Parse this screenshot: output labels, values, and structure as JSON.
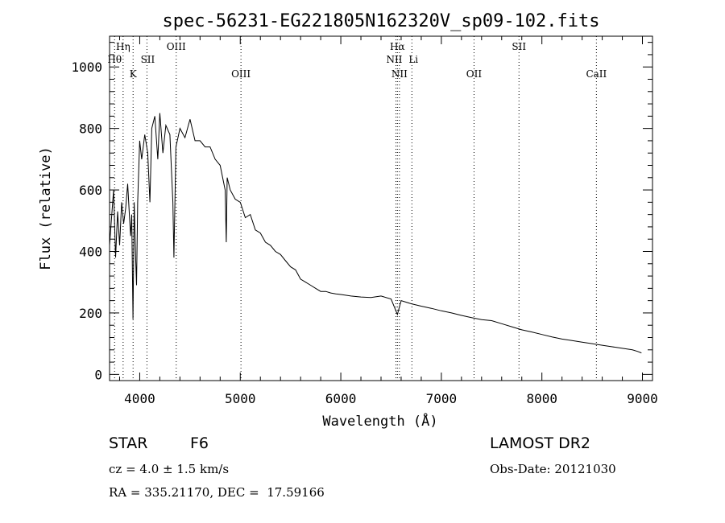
{
  "chart_data": {
    "type": "line",
    "title": "spec-56231-EG221805N162320V_sp09-102.fits",
    "xlabel": "Wavelength (Å)",
    "ylabel": "Flux (relative)",
    "xlim": [
      3700,
      9100
    ],
    "ylim": [
      -20,
      1100
    ],
    "xticks": [
      4000,
      5000,
      6000,
      7000,
      8000,
      9000
    ],
    "xtick_labels": [
      "4000",
      "5000",
      "6000",
      "7000",
      "8000",
      "9000"
    ],
    "yticks": [
      0,
      200,
      400,
      600,
      800,
      1000
    ],
    "ytick_labels": [
      "0",
      "200",
      "400",
      "600",
      "800",
      "1000"
    ],
    "grid": false,
    "series": [
      {
        "x": [
          3700,
          3720,
          3740,
          3760,
          3780,
          3800,
          3820,
          3840,
          3860,
          3880,
          3900,
          3910,
          3920,
          3933,
          3945,
          3960,
          3968,
          3980,
          4000,
          4020,
          4050,
          4080,
          4101,
          4120,
          4150,
          4180,
          4200,
          4230,
          4260,
          4300,
          4330,
          4340,
          4360,
          4400,
          4450,
          4500,
          4550,
          4600,
          4650,
          4700,
          4750,
          4800,
          4850,
          4861,
          4870,
          4900,
          4950,
          5000,
          5050,
          5100,
          5150,
          5200,
          5250,
          5300,
          5350,
          5400,
          5450,
          5500,
          5550,
          5600,
          5650,
          5700,
          5750,
          5800,
          5850,
          5900,
          5950,
          6000,
          6100,
          6200,
          6300,
          6400,
          6500,
          6563,
          6600,
          6700,
          6800,
          6900,
          7000,
          7100,
          7200,
          7300,
          7400,
          7500,
          7600,
          7700,
          7800,
          7900,
          8000,
          8100,
          8200,
          8300,
          8400,
          8500,
          8600,
          8700,
          8800,
          8900,
          8950,
          8990
        ],
        "values": [
          420,
          510,
          600,
          380,
          530,
          420,
          560,
          490,
          540,
          620,
          500,
          450,
          520,
          180,
          560,
          370,
          290,
          560,
          760,
          700,
          780,
          720,
          560,
          800,
          840,
          700,
          850,
          720,
          810,
          780,
          560,
          380,
          740,
          800,
          770,
          830,
          760,
          760,
          740,
          740,
          700,
          680,
          600,
          430,
          640,
          600,
          570,
          560,
          510,
          520,
          470,
          460,
          430,
          420,
          400,
          390,
          370,
          350,
          340,
          310,
          300,
          290,
          280,
          270,
          270,
          265,
          262,
          260,
          255,
          252,
          250,
          255,
          245,
          195,
          240,
          230,
          222,
          215,
          207,
          200,
          192,
          185,
          178,
          175,
          165,
          155,
          145,
          138,
          130,
          122,
          115,
          110,
          105,
          100,
          95,
          90,
          85,
          80,
          75,
          70
        ]
      }
    ],
    "line_markers": [
      {
        "wave": 3750,
        "label": "Hθ"
      },
      {
        "wave": 3835,
        "label": "Hη"
      },
      {
        "wave": 3934,
        "label": "K"
      },
      {
        "wave": 4072,
        "label": "SII"
      },
      {
        "wave": 4363,
        "label": "OIII"
      },
      {
        "wave": 5007,
        "label": "OIII"
      },
      {
        "wave": 6548,
        "label": "NII"
      },
      {
        "wave": 6563,
        "label": "Hα"
      },
      {
        "wave": 6583,
        "label": "NII"
      },
      {
        "wave": 6707,
        "label": "Li"
      },
      {
        "wave": 7325,
        "label": "OII"
      },
      {
        "wave": 7772,
        "label": "SII"
      },
      {
        "wave": 8542,
        "label": "CaII"
      }
    ]
  },
  "info": {
    "class": "STAR",
    "subclass": "F6",
    "survey": "LAMOST DR2",
    "cz": "cz = 4.0 ± 1.5 km/s",
    "obs_date": "Obs-Date: 20121030",
    "coords": "RA = 335.21170, DEC =  17.59166"
  }
}
